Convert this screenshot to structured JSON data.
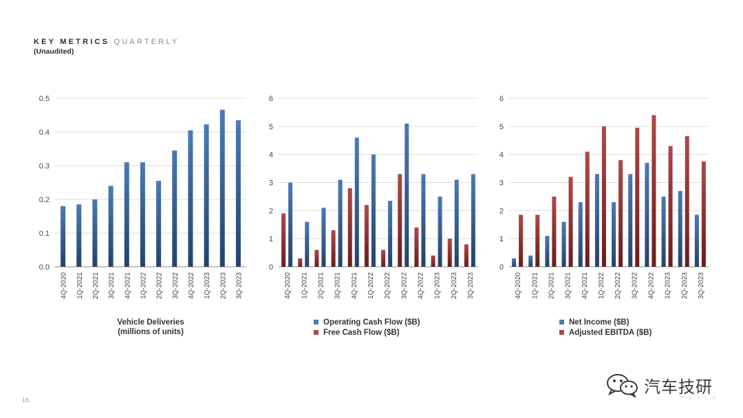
{
  "header": {
    "title_bold": "KEY METRICS",
    "title_light": "QUARTERLY",
    "subtitle": "(Unaudited)"
  },
  "footer": {
    "page_number": "16",
    "watermark": "汽车技研",
    "brand": "TESLA"
  },
  "colors": {
    "blue_top": "#4a7ab8",
    "blue_bottom": "#24426a",
    "red_top": "#b04848",
    "red_bottom": "#6a1c1c",
    "grid": "#dddddd",
    "axis": "#888888",
    "text": "#444444"
  },
  "chart_data": [
    {
      "type": "bar",
      "categories": [
        "4Q-2020",
        "1Q-2021",
        "2Q-2021",
        "3Q-2021",
        "4Q-2021",
        "1Q-2022",
        "2Q-2022",
        "3Q-2022",
        "4Q-2022",
        "1Q-2023",
        "2Q-2023",
        "3Q-2023"
      ],
      "series": [
        {
          "name": "",
          "color": "blue",
          "values": [
            0.18,
            0.185,
            0.2,
            0.24,
            0.31,
            0.31,
            0.255,
            0.345,
            0.405,
            0.423,
            0.466,
            0.435
          ]
        }
      ],
      "ylim": [
        0,
        0.5
      ],
      "yticks": [
        "0.0",
        "0.1",
        "0.2",
        "0.3",
        "0.4",
        "0.5"
      ],
      "xlabel": "Vehicle Deliveries",
      "xlabel2": "(millions of units)",
      "grid": true
    },
    {
      "type": "bar",
      "categories": [
        "4Q-2020",
        "1Q-2021",
        "2Q-2021",
        "3Q-2021",
        "4Q-2021",
        "1Q-2022",
        "2Q-2022",
        "3Q-2022",
        "4Q-2022",
        "1Q-2023",
        "2Q-2023",
        "3Q-2023"
      ],
      "series": [
        {
          "name": "Free Cash Flow ($B)",
          "color": "red",
          "values": [
            1.9,
            0.3,
            0.6,
            1.3,
            2.8,
            2.2,
            0.6,
            3.3,
            1.4,
            0.4,
            1.0,
            0.8
          ]
        },
        {
          "name": "Operating Cash Flow ($B)",
          "color": "blue",
          "values": [
            3.0,
            1.6,
            2.1,
            3.1,
            4.6,
            4.0,
            2.35,
            5.1,
            3.3,
            2.5,
            3.1,
            3.3
          ]
        }
      ],
      "legend_order": [
        1,
        0
      ],
      "ylim": [
        0,
        6
      ],
      "yticks": [
        "0",
        "1",
        "2",
        "3",
        "4",
        "5",
        "6"
      ],
      "grid": true
    },
    {
      "type": "bar",
      "categories": [
        "4Q-2020",
        "1Q-2021",
        "2Q-2021",
        "3Q-2021",
        "4Q-2021",
        "1Q-2022",
        "2Q-2022",
        "3Q-2022",
        "4Q-2022",
        "1Q-2023",
        "2Q-2023",
        "3Q-2023"
      ],
      "series": [
        {
          "name": "Net Income ($B)",
          "color": "blue",
          "values": [
            0.3,
            0.4,
            1.1,
            1.6,
            2.3,
            3.3,
            2.3,
            3.3,
            3.7,
            2.5,
            2.7,
            1.85
          ]
        },
        {
          "name": "Adjusted EBITDA ($B)",
          "color": "red",
          "values": [
            1.85,
            1.85,
            2.5,
            3.2,
            4.1,
            5.0,
            3.8,
            4.95,
            5.4,
            4.3,
            4.65,
            3.75
          ]
        }
      ],
      "legend_order": [
        0,
        1
      ],
      "ylim": [
        0,
        6
      ],
      "yticks": [
        "0",
        "1",
        "2",
        "3",
        "4",
        "5",
        "6"
      ],
      "grid": true
    }
  ]
}
